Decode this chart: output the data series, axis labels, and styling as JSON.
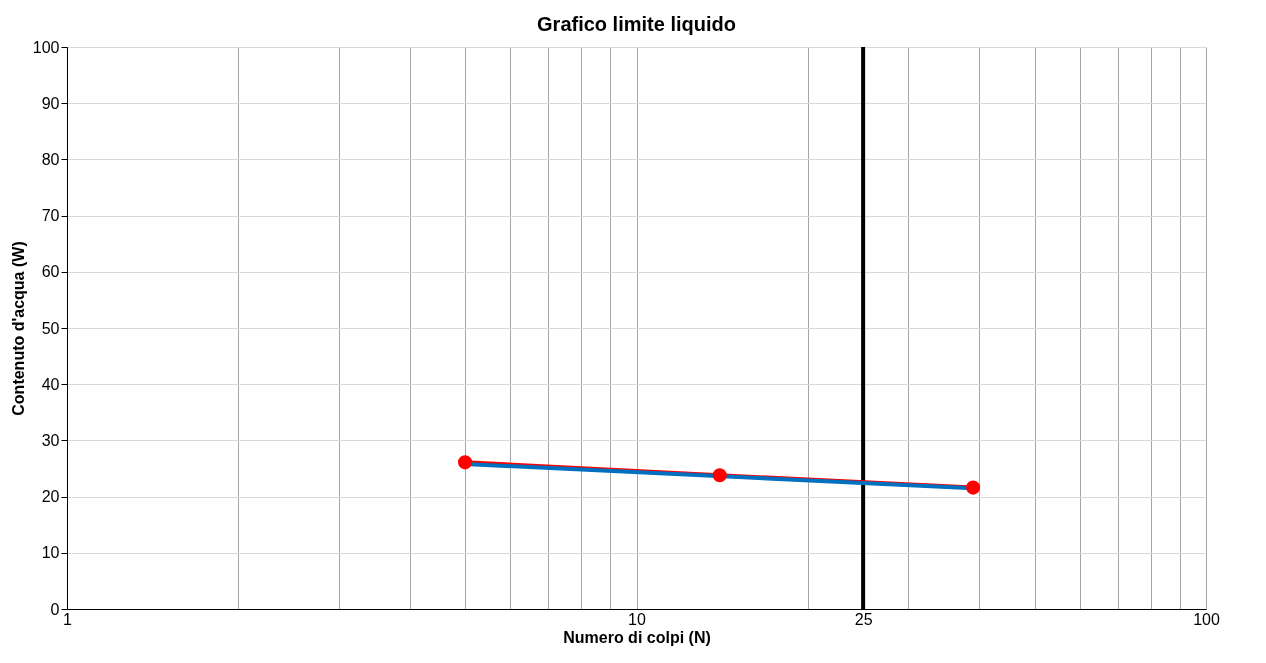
{
  "chart_data": {
    "type": "line",
    "title": "Grafico limite liquido",
    "xlabel": "Numero di colpi (N)",
    "ylabel": "Contenuto d'acqua (W)",
    "log": "x",
    "xlim": [
      1,
      100
    ],
    "ylim": [
      0,
      100
    ],
    "xticks": [
      1,
      {
        "value": 2,
        "label": null
      },
      {
        "value": 3,
        "label": null
      },
      {
        "value": 4,
        "label": null
      },
      {
        "value": 5,
        "label": null
      },
      {
        "value": 6,
        "label": null
      },
      {
        "value": 7,
        "label": null
      },
      {
        "value": 8,
        "label": null
      },
      {
        "value": 9,
        "label": null
      },
      10,
      {
        "value": 20,
        "label": null
      },
      25,
      {
        "value": 30,
        "label": null
      },
      {
        "value": 40,
        "label": null
      },
      {
        "value": 50,
        "label": null
      },
      {
        "value": 60,
        "label": null
      },
      {
        "value": 70,
        "label": null
      },
      {
        "value": 80,
        "label": null
      },
      {
        "value": 90,
        "label": null
      },
      100
    ],
    "yticks": [
      0,
      10,
      20,
      30,
      40,
      50,
      60,
      70,
      80,
      90,
      100
    ],
    "grid": true,
    "series": [
      {
        "color": "#ff0000",
        "marker": "circle",
        "x": [
          5,
          14,
          39
        ],
        "values": [
          26.1,
          23.8,
          21.6
        ]
      },
      {
        "type": "line",
        "color": "#0070c0",
        "marker": "none",
        "x": [
          5,
          39
        ],
        "values": [
          25.8,
          21.5
        ]
      }
    ],
    "ref_lines": [
      {
        "axis": "x",
        "value": 25,
        "color": "#000000"
      }
    ]
  }
}
